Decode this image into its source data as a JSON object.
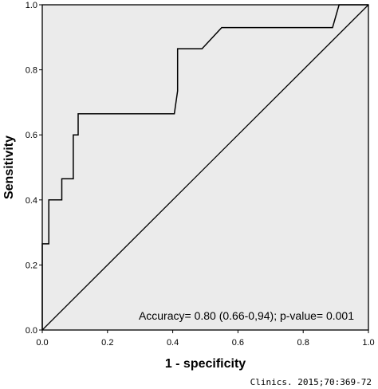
{
  "chart_data": {
    "type": "line",
    "title": "",
    "xlabel": "1 - specificity",
    "ylabel": "Sensitivity",
    "xlim": [
      0,
      1
    ],
    "ylim": [
      0,
      1
    ],
    "x_ticks": [
      "0.0",
      "0.2",
      "0.4",
      "0.6",
      "0.8",
      "1.0"
    ],
    "y_ticks": [
      "0.0",
      "0.2",
      "0.4",
      "0.6",
      "0.8",
      "1.0"
    ],
    "grid": false,
    "legend": "none",
    "plot_background": "#ebebeb",
    "series": [
      {
        "type": "step",
        "color": "#000000",
        "x": [
          0.0,
          0.0,
          0.02,
          0.02,
          0.06,
          0.06,
          0.095,
          0.095,
          0.11,
          0.11,
          0.405,
          0.415,
          0.415,
          0.49,
          0.55,
          0.89,
          0.91,
          0.91,
          1.0
        ],
        "y": [
          0.0,
          0.265,
          0.265,
          0.4,
          0.4,
          0.465,
          0.465,
          0.6,
          0.6,
          0.665,
          0.665,
          0.735,
          0.865,
          0.865,
          0.93,
          0.93,
          1.0,
          1.0,
          1.0
        ]
      },
      {
        "type": "reference",
        "color": "#000000",
        "x": [
          0,
          1
        ],
        "y": [
          0,
          1
        ]
      }
    ],
    "annotation": "Accuracy= 0.80 (0.66-0,94); p-value= 0.001"
  },
  "source_note": "Clinics. 2015;70:369-72"
}
